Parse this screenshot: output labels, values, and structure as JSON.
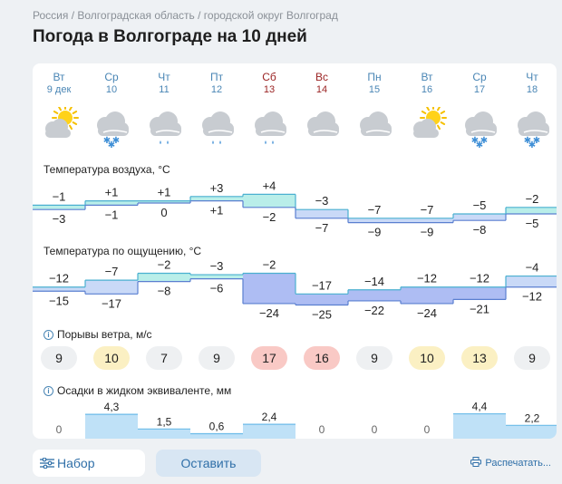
{
  "breadcrumb": {
    "items": [
      "Россия",
      "Волгоградская область",
      "городской округ Волгоград"
    ],
    "separator": " / "
  },
  "title": "Погода в Волгограде на 10 дней",
  "days": [
    {
      "weekday": "Вт",
      "date": "9 дек",
      "weekend": false,
      "icon": "sun-cloud-icon"
    },
    {
      "weekday": "Ср",
      "date": "10",
      "weekend": false,
      "icon": "cloud-snow-icon"
    },
    {
      "weekday": "Чт",
      "date": "11",
      "weekend": false,
      "icon": "cloud-rain-icon"
    },
    {
      "weekday": "Пт",
      "date": "12",
      "weekend": false,
      "icon": "cloud-rain-icon"
    },
    {
      "weekday": "Сб",
      "date": "13",
      "weekend": true,
      "icon": "cloud-rain-icon"
    },
    {
      "weekday": "Вс",
      "date": "14",
      "weekend": true,
      "icon": "cloud-icon"
    },
    {
      "weekday": "Пн",
      "date": "15",
      "weekend": false,
      "icon": "cloud-icon"
    },
    {
      "weekday": "Вт",
      "date": "16",
      "weekend": false,
      "icon": "sun-cloud-icon"
    },
    {
      "weekday": "Ср",
      "date": "17",
      "weekend": false,
      "icon": "cloud-snow-icon"
    },
    {
      "weekday": "Чт",
      "date": "18",
      "weekend": false,
      "icon": "cloud-snow-icon"
    }
  ],
  "air_temperature": {
    "label": "Температура воздуха, °C",
    "max": [
      "−1",
      "+1",
      "+1",
      "+3",
      "+4",
      "−3",
      "−7",
      "−7",
      "−5",
      "−2"
    ],
    "min": [
      "−3",
      "−1",
      "0",
      "+1",
      "−2",
      "−7",
      "−9",
      "−9",
      "−8",
      "−5"
    ],
    "max_values": [
      -1,
      1,
      1,
      3,
      4,
      -3,
      -7,
      -7,
      -5,
      -2
    ],
    "min_values": [
      -3,
      -1,
      0,
      1,
      -2,
      -7,
      -9,
      -9,
      -8,
      -5
    ]
  },
  "feels_like": {
    "label": "Температура по ощущению, °C",
    "max": [
      "−12",
      "−7",
      "−2",
      "−3",
      "−2",
      "−17",
      "−14",
      "−12",
      "−12",
      "−4"
    ],
    "min": [
      "−15",
      "−17",
      "−8",
      "−6",
      "−24",
      "−25",
      "−22",
      "−24",
      "−21",
      "−12"
    ],
    "max_values": [
      -12,
      -7,
      -2,
      -3,
      -2,
      -17,
      -14,
      -12,
      -12,
      -4
    ],
    "min_values": [
      -15,
      -17,
      -8,
      -6,
      -24,
      -25,
      -22,
      -24,
      -21,
      -12
    ]
  },
  "wind_gusts": {
    "label": "Порывы ветра, м/с",
    "values": [
      "9",
      "10",
      "7",
      "9",
      "17",
      "16",
      "9",
      "10",
      "13",
      "9"
    ],
    "levels": [
      "low",
      "mid",
      "low",
      "low",
      "high",
      "high",
      "low",
      "mid",
      "mid",
      "low"
    ]
  },
  "precipitation": {
    "label": "Осадки в жидком эквиваленте, мм",
    "labels": [
      "0",
      "4,3",
      "1,5",
      "0,6",
      "2,4",
      "0",
      "0",
      "0",
      "4,4",
      "2,2"
    ],
    "values": [
      0,
      4.3,
      1.5,
      0.6,
      2.4,
      0,
      0,
      0,
      4.4,
      2.2
    ]
  },
  "colors": {
    "warm_fill": "#b9eee9",
    "cold_fill": "#c9d9f7",
    "very_cold_fill": "#aebdf3",
    "gust_low": "#eef0f2",
    "gust_mid": "#fbf0c3",
    "gust_high": "#f9c9c5",
    "precip": "#bfe1f7",
    "link": "#2f6fa8"
  },
  "buttons": {
    "data": "Набор данных",
    "feedback": "Оставить отзыв",
    "print": "Распечатать..."
  }
}
